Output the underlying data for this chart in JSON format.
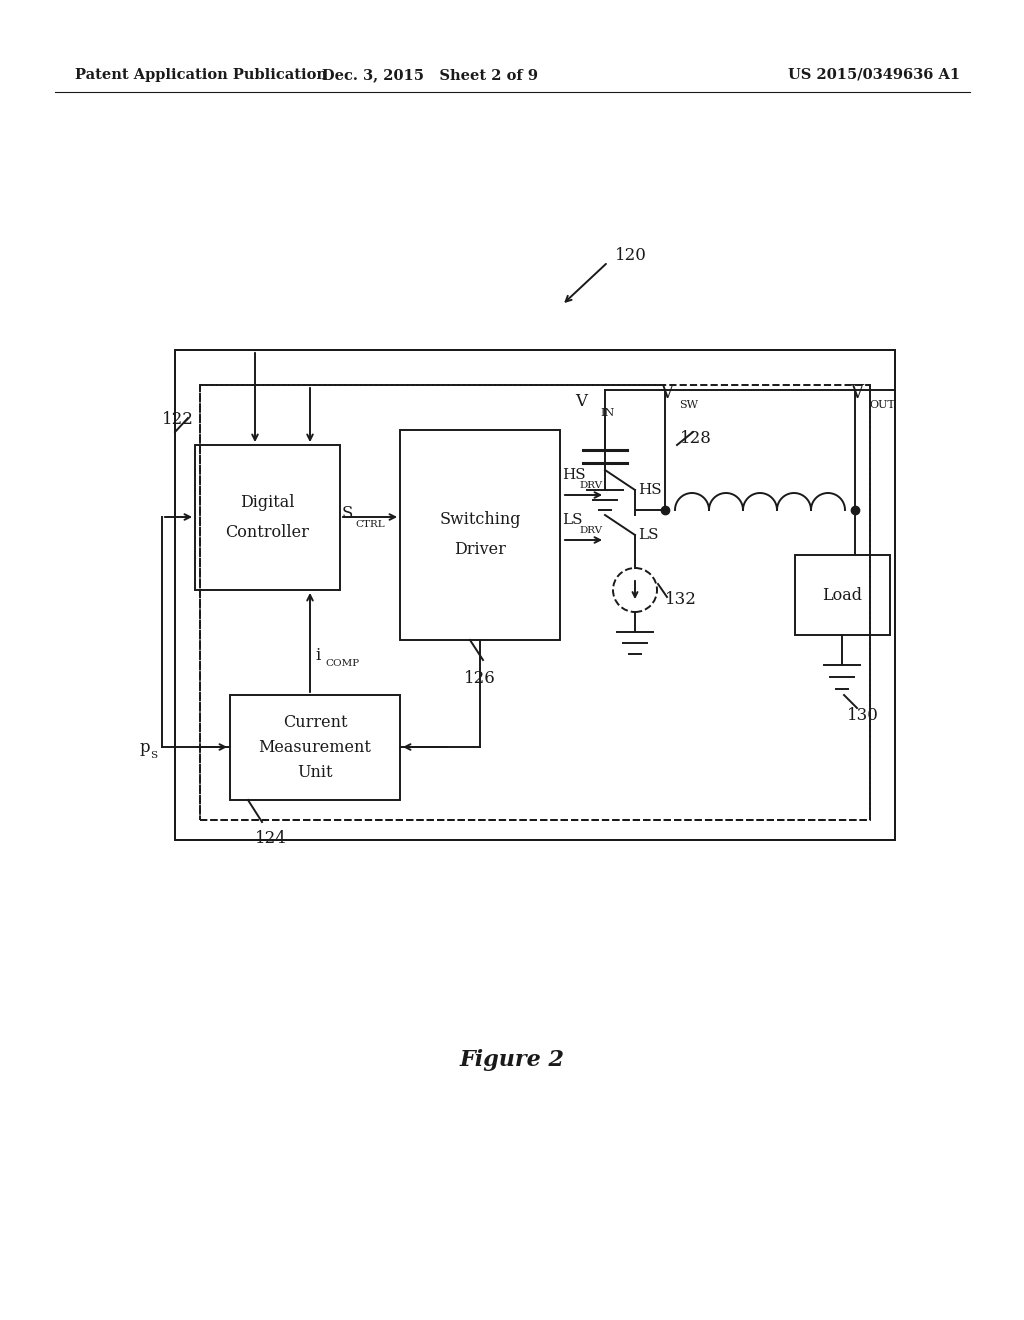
{
  "bg_color": "#ffffff",
  "header_left": "Patent Application Publication",
  "header_mid": "Dec. 3, 2015   Sheet 2 of 9",
  "header_right": "US 2015/0349636 A1",
  "figure_label": "Figure 2",
  "lc": "#1a1a1a",
  "lw": 1.4,
  "label_120": "120",
  "label_122": "122",
  "label_124": "124",
  "label_126": "126",
  "label_128": "128",
  "label_130": "130",
  "label_132": "132",
  "dc_text1": "Digital",
  "dc_text2": "Controller",
  "sd_text1": "Switching",
  "sd_text2": "Driver",
  "cmu_text1": "Current",
  "cmu_text2": "Measurement",
  "cmu_text3": "Unit",
  "load_text": "Load",
  "s_ctrl_main": "S",
  "s_ctrl_sub": "CTRL",
  "hs_drv_main": "HS",
  "hs_drv_sub": "DRV",
  "ls_drv_main": "LS",
  "ls_drv_sub": "DRV",
  "hs_label": "HS",
  "ls_label": "LS",
  "vin_main": "V",
  "vin_sub": "IN",
  "vsw_main": "V",
  "vsw_sub": "SW",
  "vout_main": "V",
  "vout_sub": "OUT",
  "ps_main": "p",
  "ps_sub": "S",
  "icomp_main": "i",
  "icomp_sub": "COMP"
}
